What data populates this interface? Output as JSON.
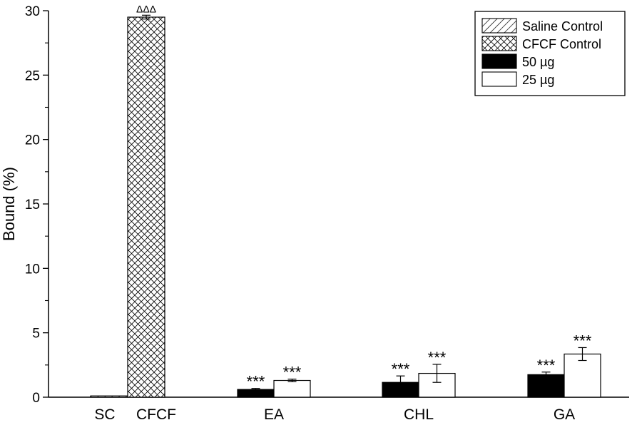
{
  "chart_data": {
    "type": "bar",
    "title": "",
    "ylabel": "Bound (%)",
    "xlabel": "",
    "ylim": [
      0,
      30
    ],
    "yticks": [
      0,
      5,
      10,
      15,
      20,
      25,
      30
    ],
    "categories": [
      "SC",
      "CFCF",
      "EA",
      "CHL",
      "GA"
    ],
    "controls": [
      {
        "category": "SC",
        "series": "Saline Control",
        "value": 0.1,
        "error": 0,
        "annotation": ""
      },
      {
        "category": "CFCF",
        "series": "CFCF Control",
        "value": 29.5,
        "error": 0.15,
        "annotation": "ΔΔΔ"
      }
    ],
    "series": [
      {
        "name": "50 µg",
        "values": [
          null,
          null,
          0.6,
          1.15,
          1.75
        ],
        "errors": [
          null,
          null,
          0.08,
          0.5,
          0.2
        ],
        "annotations": [
          "",
          "",
          "***",
          "***",
          "***"
        ]
      },
      {
        "name": "25 µg",
        "values": [
          null,
          null,
          1.3,
          1.85,
          3.35
        ],
        "errors": [
          null,
          null,
          0.1,
          0.7,
          0.5
        ],
        "annotations": [
          "",
          "",
          "***",
          "***",
          "***"
        ]
      }
    ],
    "legend": {
      "position": "top-right",
      "entries": [
        {
          "label": "Saline Control",
          "fill": "diagonal-hatch"
        },
        {
          "label": "CFCF Control",
          "fill": "crosshatch"
        },
        {
          "label": "50 µg",
          "fill": "solid-black"
        },
        {
          "label": "25 µg",
          "fill": "white"
        }
      ]
    },
    "grid": false
  }
}
